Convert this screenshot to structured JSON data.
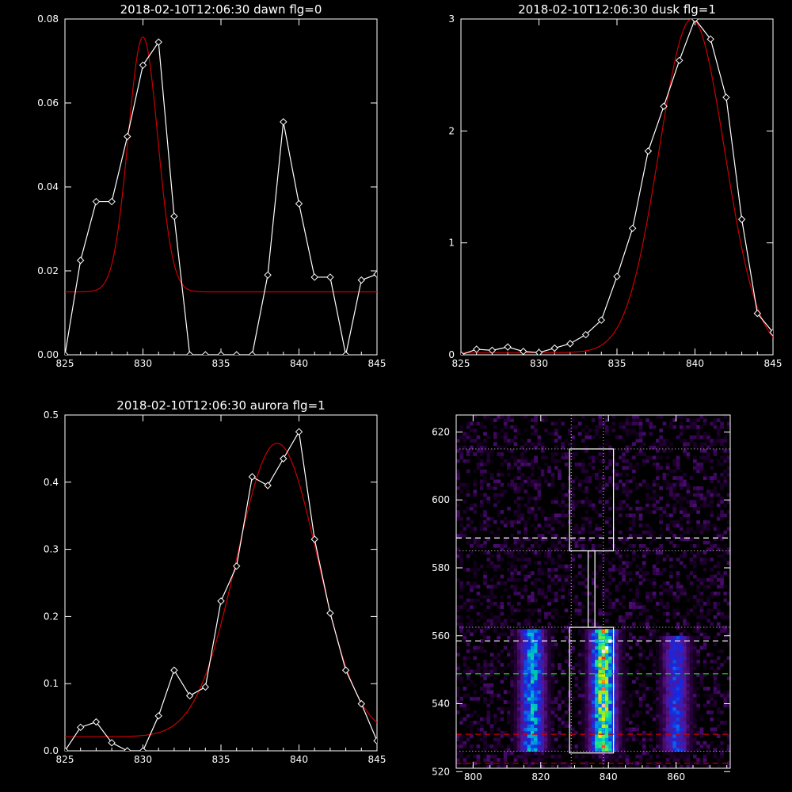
{
  "colors": {
    "background": "#000000",
    "axis": "#ffffff",
    "data": "#ffffff",
    "fit": "#cc0000",
    "dotted": "#cfcfcf",
    "dash_white": "#ffffff",
    "dash_green": "#00dd00",
    "dash_red": "#cc0000"
  },
  "chart_data": [
    {
      "type": "line",
      "title": "2018-02-10T12:06:30 dawn flg=0",
      "xlim": [
        825,
        845
      ],
      "ylim": [
        0,
        0.08
      ],
      "xticks": [
        "825",
        "830",
        "835",
        "840",
        "845"
      ],
      "yticks": [
        "0.00",
        "0.02",
        "0.04",
        "0.06",
        "0.08"
      ],
      "series": [
        {
          "kind": "data",
          "marker": "diamond",
          "x": [
            825,
            826,
            827,
            828,
            829,
            830,
            831,
            832,
            833,
            834,
            835,
            836,
            837,
            838,
            839,
            840,
            841,
            842,
            843,
            844,
            845
          ],
          "y": [
            0.0,
            0.0225,
            0.0365,
            0.0365,
            0.052,
            0.069,
            0.0745,
            0.033,
            0.0,
            0.0,
            0.0,
            0.0,
            0.0,
            0.019,
            0.0555,
            0.036,
            0.0185,
            0.0185,
            0.0,
            0.0178,
            0.0192
          ]
        },
        {
          "kind": "fit",
          "shape": "gaussian",
          "baseline": 0.015,
          "peak": 0.0757,
          "center": 830.0,
          "sigma": 0.95
        }
      ]
    },
    {
      "type": "line",
      "title": "2018-02-10T12:06:30 dusk flg=1",
      "xlim": [
        825,
        845
      ],
      "ylim": [
        0,
        3
      ],
      "xticks": [
        "825",
        "830",
        "835",
        "840",
        "845"
      ],
      "yticks": [
        "0",
        "1",
        "2",
        "3"
      ],
      "series": [
        {
          "kind": "data",
          "marker": "diamond",
          "x": [
            825,
            826,
            827,
            828,
            829,
            830,
            831,
            832,
            833,
            834,
            835,
            836,
            837,
            838,
            839,
            840,
            841,
            842,
            843,
            844,
            845
          ],
          "y": [
            0.0,
            0.05,
            0.04,
            0.07,
            0.03,
            0.02,
            0.06,
            0.1,
            0.18,
            0.31,
            0.7,
            1.13,
            1.82,
            2.22,
            2.63,
            3.0,
            2.82,
            2.3,
            1.21,
            0.37,
            0.2
          ]
        },
        {
          "kind": "fit",
          "shape": "gaussian",
          "baseline": 0.02,
          "peak": 3.0,
          "center": 839.8,
          "sigma": 2.1
        }
      ]
    },
    {
      "type": "line",
      "title": "2018-02-10T12:06:30 aurora flg=1",
      "xlim": [
        825,
        845
      ],
      "ylim": [
        0,
        0.5
      ],
      "xticks": [
        "825",
        "830",
        "835",
        "840",
        "845"
      ],
      "yticks": [
        "0.0",
        "0.1",
        "0.2",
        "0.3",
        "0.4",
        "0.5"
      ],
      "series": [
        {
          "kind": "data",
          "marker": "diamond",
          "x": [
            825,
            826,
            827,
            828,
            829,
            830,
            831,
            832,
            833,
            834,
            835,
            836,
            837,
            838,
            839,
            840,
            841,
            842,
            843,
            844,
            845
          ],
          "y": [
            0.0,
            0.035,
            0.043,
            0.012,
            0.0,
            0.0,
            0.052,
            0.12,
            0.082,
            0.095,
            0.223,
            0.275,
            0.408,
            0.395,
            0.435,
            0.475,
            0.315,
            0.205,
            0.12,
            0.07,
            0.015
          ]
        },
        {
          "kind": "fit",
          "shape": "gaussian",
          "baseline": 0.021,
          "peak": 0.458,
          "center": 838.6,
          "sigma": 2.6
        }
      ]
    },
    {
      "type": "heatmap",
      "title": "",
      "xlim": [
        795,
        876
      ],
      "ylim": [
        521,
        625
      ],
      "xticks": [
        "800",
        "820",
        "840",
        "860"
      ],
      "yticks": [
        "520",
        "540",
        "560",
        "580",
        "600",
        "620"
      ],
      "emission_columns": [
        {
          "center": 817.5,
          "width": 2.5,
          "ymin": 526,
          "ymax": 562,
          "peak": 0.7
        },
        {
          "center": 838.5,
          "width": 2.5,
          "ymin": 526,
          "ymax": 562,
          "peak": 1.0
        },
        {
          "center": 860.0,
          "width": 2.5,
          "ymin": 526,
          "ymax": 560,
          "peak": 0.5
        }
      ],
      "hot_spots": [
        {
          "x": 839,
          "y": 556
        },
        {
          "x": 840,
          "y": 558
        }
      ],
      "overlays": {
        "dotted_vertical_x": [
          829,
          838.5
        ],
        "dotted_horizontal_y": [
          615,
          585,
          562.5,
          526
        ],
        "boxes": [
          {
            "x0": 828.5,
            "x1": 841.5,
            "y0": 585,
            "y1": 615
          },
          {
            "x0": 828.5,
            "x1": 841.5,
            "y0": 525.5,
            "y1": 562.5
          },
          {
            "x0": 834,
            "x1": 836,
            "y0": 562.5,
            "y1": 585
          }
        ],
        "dashed_white_y": [
          588.8,
          558.5
        ],
        "dashed_green_y": [
          548.8
        ],
        "dashed_red_y": [
          531,
          522.5
        ]
      }
    }
  ]
}
